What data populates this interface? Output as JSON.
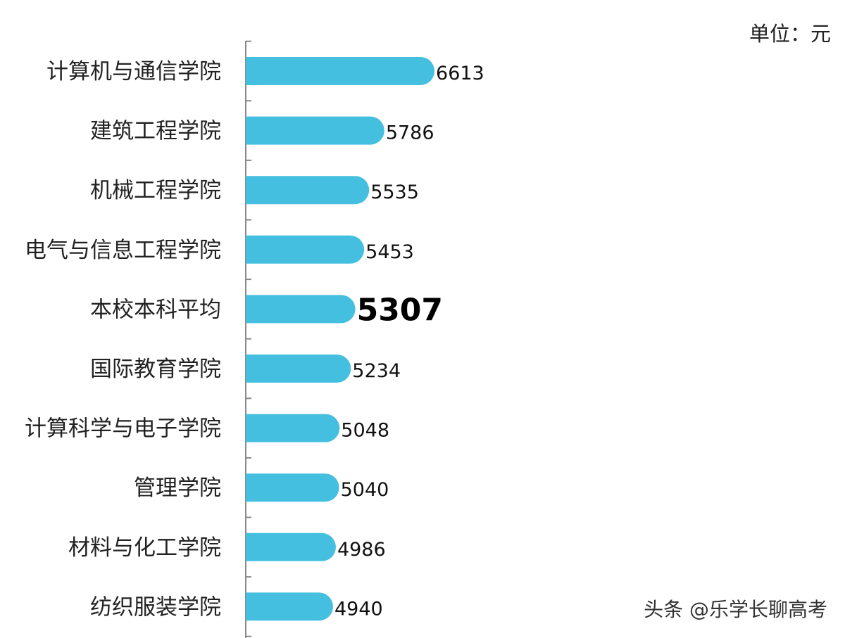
{
  "chart_data": {
    "type": "bar",
    "orientation": "horizontal",
    "unit_label": "单位：元",
    "categories": [
      "计算机与通信学院",
      "建筑工程学院",
      "机械工程学院",
      "电气与信息工程学院",
      "本校本科平均",
      "国际教育学院",
      "计算科学与电子学院",
      "管理学院",
      "材料与化工学院",
      "纺织服装学院"
    ],
    "values": [
      6613,
      5786,
      5535,
      5453,
      5307,
      5234,
      5048,
      5040,
      4986,
      4940
    ],
    "highlight_category": "本校本科平均",
    "xlim": [
      3500,
      6900
    ],
    "bar_color": "#45bfdf",
    "grid": false,
    "legend": "none"
  },
  "watermark": "头条 @乐学长聊高考"
}
